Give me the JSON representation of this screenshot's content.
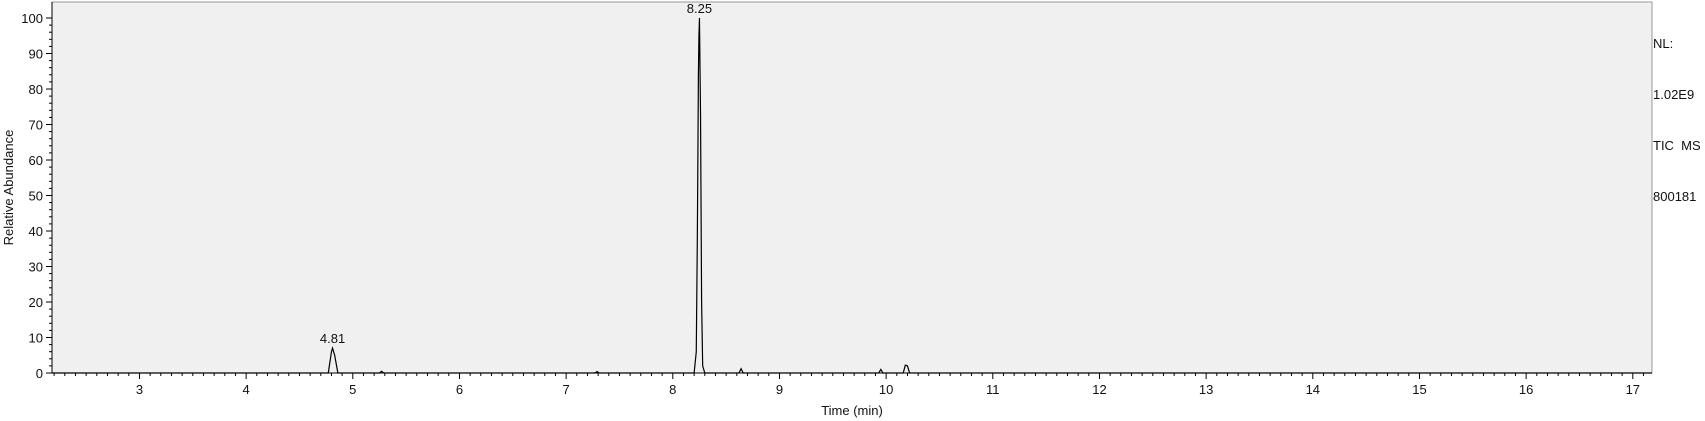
{
  "info_panel": {
    "nl_label": "NL:",
    "nl_value": "1.02E9",
    "trace": "TIC  MS",
    "sample": "800181"
  },
  "chart_data": {
    "type": "line",
    "title": "",
    "xlabel": "Time (min)",
    "ylabel": "Relative Abundance",
    "xlim": [
      2.18,
      17.18
    ],
    "ylim": [
      0,
      100
    ],
    "x_ticks": [
      3,
      4,
      5,
      6,
      7,
      8,
      9,
      10,
      11,
      12,
      13,
      14,
      15,
      16,
      17
    ],
    "y_ticks": [
      0,
      10,
      20,
      30,
      40,
      50,
      60,
      70,
      80,
      90,
      100
    ],
    "grid": false,
    "legend": "none",
    "colors": {
      "plot_bg": "#f0f0f0",
      "trace": "#000000",
      "frame": "#999999"
    },
    "series": [
      {
        "x": [
          2.18,
          4.77,
          4.8,
          4.81,
          4.83,
          4.86,
          5.25,
          5.27,
          5.29,
          7.27,
          7.29,
          7.31,
          8.2,
          8.22,
          8.23,
          8.235,
          8.24,
          8.245,
          8.25,
          8.255,
          8.26,
          8.27,
          8.28,
          8.3,
          8.62,
          8.64,
          8.66,
          9.93,
          9.95,
          9.97,
          10.16,
          10.18,
          10.2,
          10.22,
          17.18
        ],
        "y": [
          0,
          0,
          6,
          7,
          5,
          0,
          0,
          0.5,
          0,
          0,
          0.4,
          0,
          0,
          6,
          38,
          60,
          84,
          95,
          100,
          86,
          73,
          20,
          2,
          0,
          0,
          1.2,
          0,
          0,
          1,
          0,
          0,
          2.2,
          2,
          0,
          0
        ]
      }
    ],
    "annotations": [
      {
        "x": 4.81,
        "y": 7,
        "text": "4.81"
      },
      {
        "x": 8.25,
        "y": 100,
        "text": "8.25"
      }
    ]
  }
}
